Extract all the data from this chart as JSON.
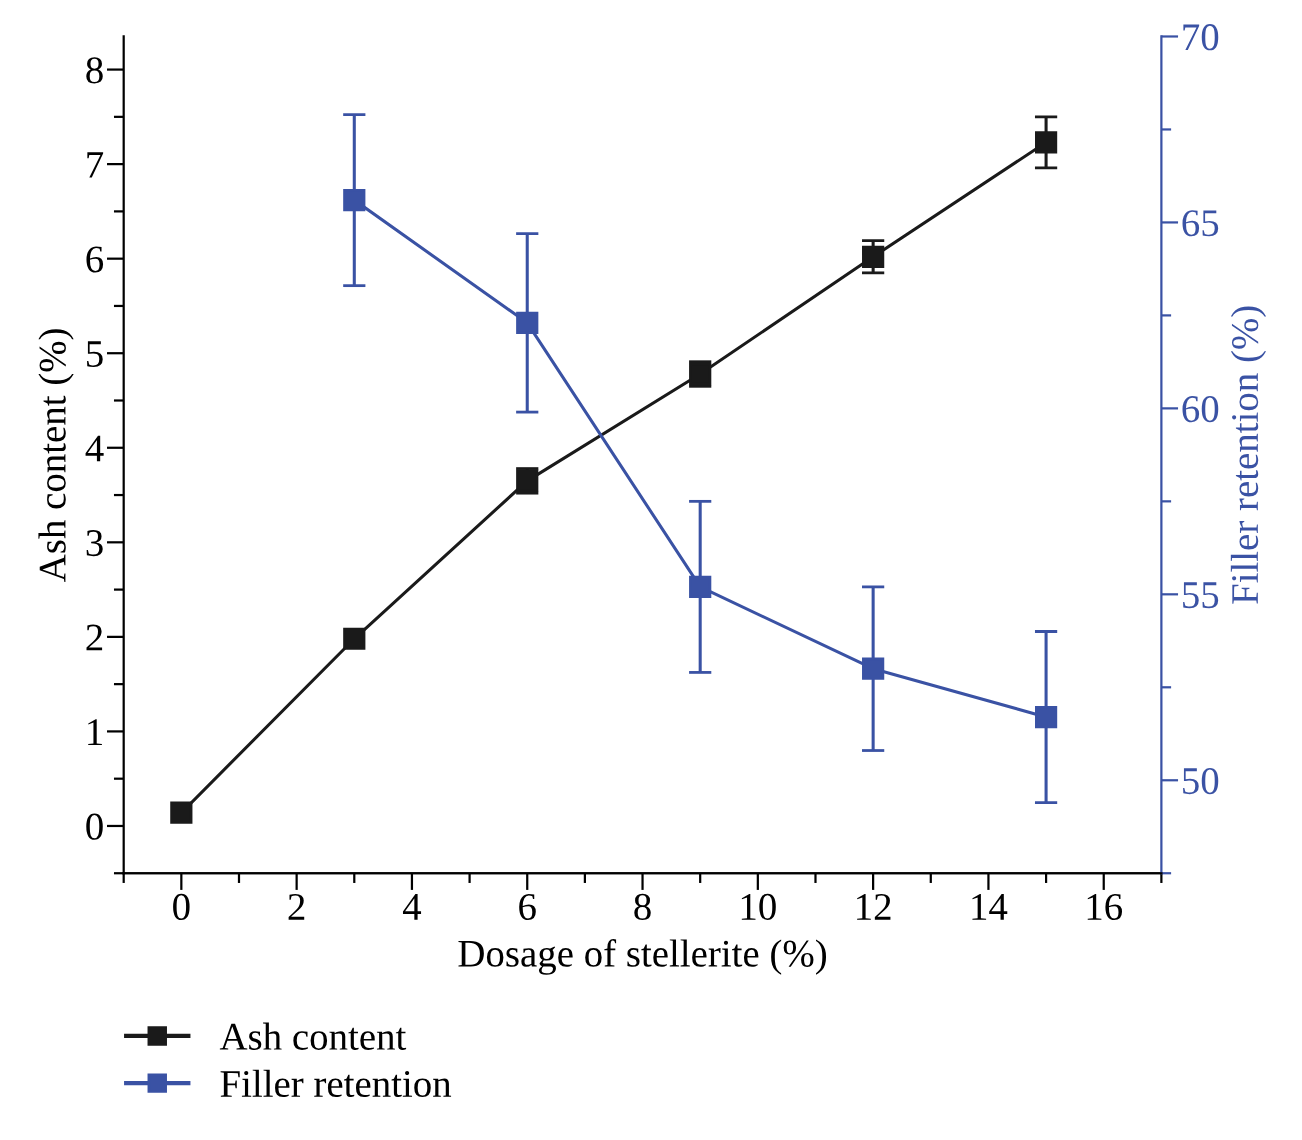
{
  "chart_data": {
    "type": "line",
    "xlabel": "Dosage of stellerite (%)",
    "ylabel": "Ash content (%)",
    "y2label": "Filler retention (%)",
    "x": [
      0,
      3,
      6,
      9,
      12,
      15
    ],
    "series": [
      {
        "name": "Ash content",
        "color": "#1a1a1a",
        "values": [
          0.14,
          1.98,
          3.65,
          4.78,
          6.02,
          7.23
        ],
        "errors": [
          null,
          null,
          0.13,
          0.13,
          0.17,
          0.27
        ]
      },
      {
        "name": "Filler retention",
        "color": "#3a52a4",
        "axis": "y2",
        "x": [
          3,
          6,
          9,
          12,
          15
        ],
        "values": [
          65.6,
          62.3,
          55.2,
          53.0,
          51.7
        ],
        "errors": [
          2.3,
          2.4,
          2.3,
          2.2,
          2.3
        ]
      }
    ],
    "xlim": [
      -1,
      17
    ],
    "ylim": [
      -0.5,
      8.35
    ],
    "y2lim": [
      47.5,
      70
    ],
    "xticks": [
      {
        "value": -1,
        "label": null
      },
      0,
      {
        "value": 1,
        "label": null
      },
      2,
      {
        "value": 3,
        "label": null
      },
      4,
      {
        "value": 5,
        "label": null
      },
      6,
      {
        "value": 7,
        "label": null
      },
      8,
      {
        "value": 9,
        "label": null
      },
      10,
      {
        "value": 11,
        "label": null
      },
      12,
      {
        "value": 13,
        "label": null
      },
      14,
      {
        "value": 15,
        "label": null
      },
      16,
      {
        "value": 17,
        "label": null
      }
    ],
    "yticks": [
      {
        "value": -0.5,
        "label": null
      },
      0,
      {
        "value": 0.5,
        "label": null
      },
      1,
      {
        "value": 1.5,
        "label": null
      },
      2,
      {
        "value": 2.5,
        "label": null
      },
      3,
      {
        "value": 3.5,
        "label": null
      },
      4,
      {
        "value": 4.5,
        "label": null
      },
      5,
      {
        "value": 5.5,
        "label": null
      },
      6,
      {
        "value": 6.5,
        "label": null
      },
      7,
      {
        "value": 7.5,
        "label": null
      },
      8
    ],
    "y2ticks": [
      {
        "value": 47.5,
        "label": null
      },
      50,
      {
        "value": 52.5,
        "label": null
      },
      55,
      {
        "value": 57.5,
        "label": null
      },
      60,
      {
        "value": 62.5,
        "label": null
      },
      65,
      {
        "value": 67.5,
        "label": null
      },
      70
    ],
    "marker": "square",
    "line_style": "solid",
    "grid": false,
    "legend": "bottom left"
  }
}
